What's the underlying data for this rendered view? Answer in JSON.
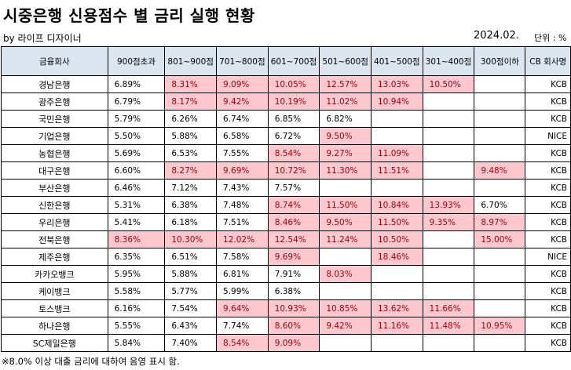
{
  "title": "시중은행 신용점수 별 금리 실행 현황",
  "byline": "by 라이프 디자이너",
  "date": "2024.02.",
  "unit": "단위 : %",
  "highlight_color": "#ffc7ce",
  "highlight_text_color": "#9c0006",
  "header_color": "#dce6f1",
  "columns": [
    "금융회사",
    "900점초과",
    "801~900점",
    "701~800점",
    "601~700점",
    "501~600점",
    "401~500점",
    "301~400점",
    "300점이하",
    "CB 회사명"
  ],
  "rows": [
    {
      "bank": "경남은행",
      "rates": [
        "6.89%",
        "8.31%",
        "9.09%",
        "10.05%",
        "12.57%",
        "13.03%",
        "10.50%",
        ""
      ],
      "hl": [
        0,
        1,
        1,
        1,
        1,
        1,
        1,
        0
      ],
      "cb": "KCB"
    },
    {
      "bank": "광주은행",
      "rates": [
        "6.79%",
        "8.17%",
        "9.42%",
        "10.19%",
        "11.02%",
        "10.94%",
        "",
        ""
      ],
      "hl": [
        0,
        1,
        1,
        1,
        1,
        1,
        0,
        0
      ],
      "cb": "KCB"
    },
    {
      "bank": "국민은행",
      "rates": [
        "5.79%",
        "6.26%",
        "6.74%",
        "6.85%",
        "6.82%",
        "",
        "",
        ""
      ],
      "hl": [
        0,
        0,
        0,
        0,
        0,
        0,
        0,
        0
      ],
      "cb": "KCB"
    },
    {
      "bank": "기업은행",
      "rates": [
        "5.50%",
        "5.88%",
        "6.58%",
        "6.72%",
        "9.50%",
        "",
        "",
        ""
      ],
      "hl": [
        0,
        0,
        0,
        0,
        1,
        0,
        0,
        0
      ],
      "cb": "NICE"
    },
    {
      "bank": "농협은행",
      "rates": [
        "5.69%",
        "6.53%",
        "7.55%",
        "8.54%",
        "9.27%",
        "11.09%",
        "",
        ""
      ],
      "hl": [
        0,
        0,
        0,
        1,
        1,
        1,
        0,
        0
      ],
      "cb": "KCB"
    },
    {
      "bank": "대구은행",
      "rates": [
        "6.60%",
        "8.27%",
        "9.69%",
        "10.72%",
        "11.30%",
        "11.51%",
        "",
        "9.48%"
      ],
      "hl": [
        0,
        1,
        1,
        1,
        1,
        1,
        0,
        1
      ],
      "cb": "KCB"
    },
    {
      "bank": "부산은행",
      "rates": [
        "6.46%",
        "7.12%",
        "7.43%",
        "7.57%",
        "",
        "",
        "",
        ""
      ],
      "hl": [
        0,
        0,
        0,
        0,
        0,
        0,
        0,
        0
      ],
      "cb": "KCB"
    },
    {
      "bank": "신한은행",
      "rates": [
        "5.31%",
        "6.38%",
        "7.48%",
        "8.74%",
        "11.50%",
        "10.84%",
        "13.93%",
        "6.70%"
      ],
      "hl": [
        0,
        0,
        0,
        1,
        1,
        1,
        1,
        0
      ],
      "cb": "KCB"
    },
    {
      "bank": "우리은행",
      "rates": [
        "5.41%",
        "6.18%",
        "7.51%",
        "8.46%",
        "9.50%",
        "11.50%",
        "9.35%",
        "8.97%"
      ],
      "hl": [
        0,
        0,
        0,
        1,
        1,
        1,
        1,
        1
      ],
      "cb": "KCB"
    },
    {
      "bank": "전북은행",
      "rates": [
        "8.36%",
        "10.30%",
        "12.02%",
        "12.54%",
        "11.24%",
        "10.50%",
        "",
        "15.00%"
      ],
      "hl": [
        1,
        1,
        1,
        1,
        1,
        1,
        0,
        1
      ],
      "cb": "KCB"
    },
    {
      "bank": "제주은행",
      "rates": [
        "6.35%",
        "6.51%",
        "7.58%",
        "9.69%",
        "",
        "18.46%",
        "",
        ""
      ],
      "hl": [
        0,
        0,
        0,
        1,
        0,
        1,
        0,
        0
      ],
      "cb": "NICE"
    },
    {
      "bank": "카카오뱅크",
      "rates": [
        "5.95%",
        "5.88%",
        "6.81%",
        "7.91%",
        "8.03%",
        "",
        "",
        ""
      ],
      "hl": [
        0,
        0,
        0,
        0,
        1,
        0,
        0,
        0
      ],
      "cb": "KCB"
    },
    {
      "bank": "케이뱅크",
      "rates": [
        "5.58%",
        "5.77%",
        "5.99%",
        "6.38%",
        "",
        "",
        "",
        ""
      ],
      "hl": [
        0,
        0,
        0,
        0,
        0,
        0,
        0,
        0
      ],
      "cb": "KCB"
    },
    {
      "bank": "토스뱅크",
      "rates": [
        "6.16%",
        "7.54%",
        "9.64%",
        "10.93%",
        "10.85%",
        "13.62%",
        "11.66%",
        ""
      ],
      "hl": [
        0,
        0,
        1,
        1,
        1,
        1,
        1,
        0
      ],
      "cb": "KCB"
    },
    {
      "bank": "하나은행",
      "rates": [
        "5.55%",
        "6.43%",
        "7.74%",
        "8.60%",
        "9.42%",
        "11.16%",
        "11.48%",
        "10.95%"
      ],
      "hl": [
        0,
        0,
        0,
        1,
        1,
        1,
        1,
        1
      ],
      "cb": "KCB"
    },
    {
      "bank": "SC제일은행",
      "rates": [
        "5.84%",
        "7.40%",
        "8.54%",
        "9.09%",
        "",
        "",
        "",
        ""
      ],
      "hl": [
        0,
        0,
        1,
        1,
        0,
        0,
        0,
        0
      ],
      "cb": "KCB"
    }
  ],
  "footnote": "※8.0% 이상 대출 금리에 대하여 음영 표시 함."
}
